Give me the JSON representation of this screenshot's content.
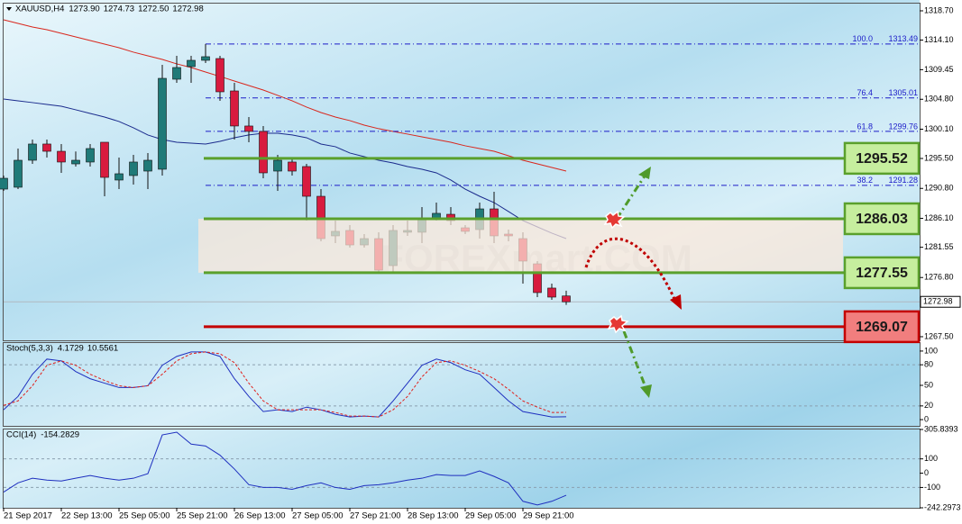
{
  "chart_data": [
    {
      "type": "candlestick",
      "title": "XAUUSD,H4",
      "title_values": [
        "1273.90",
        "1274.73",
        "1272.50",
        "1272.98"
      ],
      "categories": [
        "21 Sep 2017",
        null,
        null,
        null,
        "22 Sep 13:00",
        null,
        null,
        null,
        "25 Sep 05:00",
        null,
        null,
        null,
        "25 Sep 21:00",
        null,
        null,
        null,
        "26 Sep 13:00",
        null,
        null,
        null,
        "27 Sep 05:00",
        null,
        null,
        null,
        "27 Sep 21:00",
        null,
        null,
        null,
        "28 Sep 13:00",
        null,
        null,
        null,
        "29 Sep 05:00",
        null,
        null,
        null,
        "29 Sep 21:00",
        null,
        null,
        null
      ],
      "open": [
        1290.69,
        1290.98,
        1295.22,
        1297.77,
        1296.63,
        1294.65,
        1294.94,
        1298.05,
        1292.11,
        1292.82,
        1293.52,
        1293.81,
        1307.95,
        1309.93,
        1310.92,
        1311.2,
        1306.11,
        1300.6,
        1299.75,
        1293.52,
        1294.94,
        1294.23,
        1289.56,
        1283.34,
        1284.19,
        1281.92,
        1282.91,
        1278.67,
        1283.91,
        1283.91,
        1286.17,
        1286.73,
        1284.61,
        1284.33,
        1287.58,
        1283.62,
        1282.91,
        1278.95,
        1275.14,
        1273.9
      ],
      "high": [
        1292.82,
        1297.06,
        1298.47,
        1298.47,
        1297.77,
        1296.6,
        1297.77,
        1298.05,
        1295.64,
        1296.07,
        1296.35,
        1310.21,
        1311.63,
        1311.63,
        1313.49,
        1311.63,
        1307.38,
        1302.01,
        1300.6,
        1296.07,
        1295.64,
        1294.65,
        1290.69,
        1285.74,
        1285.04,
        1283.62,
        1283.91,
        1285.04,
        1285.74,
        1287.87,
        1288.57,
        1287.87,
        1285.04,
        1288.57,
        1290.27,
        1284.33,
        1283.91,
        1279.38,
        1275.84,
        1274.73
      ],
      "low": [
        1290.41,
        1290.69,
        1294.65,
        1295.64,
        1293.24,
        1294.23,
        1294.23,
        1289.56,
        1290.69,
        1291.4,
        1290.69,
        1292.82,
        1307.38,
        1307.38,
        1310.5,
        1304.56,
        1298.47,
        1298.05,
        1292.39,
        1290.41,
        1292.82,
        1285.74,
        1282.49,
        1282.21,
        1281.5,
        1281.5,
        1277.68,
        1277.68,
        1283.34,
        1282.21,
        1285.74,
        1285.04,
        1283.62,
        1282.91,
        1282.21,
        1282.49,
        1275.84,
        1273.72,
        1273.3,
        1272.5
      ],
      "close": [
        1292.39,
        1295.22,
        1297.77,
        1296.63,
        1294.94,
        1295.22,
        1297.06,
        1292.53,
        1293.1,
        1294.94,
        1295.22,
        1308.09,
        1309.79,
        1310.92,
        1311.49,
        1305.97,
        1300.6,
        1299.75,
        1293.24,
        1295.22,
        1293.52,
        1289.56,
        1282.91,
        1284.05,
        1281.92,
        1282.91,
        1277.96,
        1284.19,
        1284.19,
        1286.17,
        1286.88,
        1285.74,
        1284.05,
        1287.58,
        1283.34,
        1283.34,
        1279.38,
        1274.43,
        1273.72,
        1272.98
      ],
      "up_color": "#1f7a78",
      "down_color": "#d81b3f",
      "overlays": [
        {
          "color": "#d9261c",
          "values": [
            1317.29,
            1316.72,
            1316.15,
            1315.73,
            1315.16,
            1314.6,
            1314.03,
            1313.47,
            1312.9,
            1312.2,
            1311.63,
            1311.06,
            1310.36,
            1309.79,
            1309.08,
            1308.38,
            1307.67,
            1306.96,
            1306.25,
            1305.41,
            1304.56,
            1303.57,
            1302.72,
            1302.01,
            1301.45,
            1300.74,
            1300.18,
            1299.75,
            1299.33,
            1298.9,
            1298.47,
            1298.05,
            1297.49,
            1297.06,
            1296.63,
            1295.93,
            1295.22,
            1294.65,
            1294.09,
            1293.52
          ]
        },
        {
          "color": "#1a2a8c",
          "values": [
            1304.84,
            1304.56,
            1304.28,
            1303.99,
            1303.71,
            1303.15,
            1302.58,
            1302.01,
            1301.31,
            1300.32,
            1299.19,
            1298.47,
            1298.05,
            1297.91,
            1297.77,
            1298.19,
            1298.76,
            1299.19,
            1299.47,
            1299.47,
            1299.19,
            1298.76,
            1297.77,
            1297.35,
            1296.36,
            1295.79,
            1295.22,
            1294.8,
            1294.23,
            1293.81,
            1293.24,
            1292.11,
            1290.69,
            1289.56,
            1288.57,
            1287.16,
            1285.74,
            1284.75,
            1283.77,
            1282.91
          ]
        }
      ],
      "fib_color": "#1c1cc8",
      "fib_levels": [
        {
          "label": "100.0",
          "value": 1313.49
        },
        {
          "label": "76.4",
          "value": 1305.01
        },
        {
          "label": "61.8",
          "value": 1299.76
        },
        {
          "label": "38.2",
          "value": 1291.28
        }
      ],
      "levels": [
        {
          "value": 1295.52,
          "color": "#5aa02c",
          "box": "#c6ee9e"
        },
        {
          "value": 1286.03,
          "color": "#5aa02c",
          "box": "#c6ee9e"
        },
        {
          "value": 1277.55,
          "color": "#5aa02c",
          "box": "#c6ee9e"
        },
        {
          "value": 1269.07,
          "color": "#c40000",
          "box": "#f17e7e"
        }
      ],
      "current_price": 1272.98,
      "watermark": "FOREXmart.COM",
      "ylim": [
        1266.93,
        1319.83
      ],
      "yticks": [
        {
          "value": 1318.7,
          "label": "1318.70"
        },
        {
          "value": 1314.1,
          "label": "1314.10"
        },
        {
          "value": 1309.45,
          "label": "1309.45"
        },
        {
          "value": 1304.8,
          "label": "1304.80"
        },
        {
          "value": 1300.1,
          "label": "1300.10"
        },
        {
          "value": 1295.5,
          "label": "1295.50"
        },
        {
          "value": 1290.8,
          "label": "1290.80"
        },
        {
          "value": 1286.1,
          "label": "1286.10"
        },
        {
          "value": 1281.55,
          "label": "1281.55"
        },
        {
          "value": 1276.8,
          "label": "1276.80"
        },
        {
          "value": 1267.5,
          "label": "1267.50"
        }
      ]
    },
    {
      "type": "line",
      "title": "Stoch(5,3,3)",
      "title_values": [
        "4.1729",
        "10.5561"
      ],
      "series": [
        {
          "color": "#1e2fbf",
          "values": [
            14.3,
            33.8,
            66.2,
            88.3,
            85.7,
            70.1,
            59.7,
            53.2,
            46.8,
            46.8,
            49.4,
            79.2,
            92.2,
            98.7,
            98.7,
            92.2,
            59.7,
            33.8,
            11.7,
            14.3,
            11.7,
            18.2,
            14.3,
            7.8,
            3.9,
            5.2,
            3.9,
            27.3,
            53.2,
            79.2,
            88.3,
            83.1,
            72.7,
            66.2,
            46.8,
            27.3,
            11.7,
            7.8,
            3.9,
            4.1729
          ]
        },
        {
          "color": "#e0201c",
          "dashed": true,
          "values": [
            20.8,
            27.3,
            49.4,
            79.2,
            85.7,
            79.2,
            66.2,
            57.1,
            49.4,
            46.8,
            49.4,
            66.2,
            85.7,
            96.1,
            98.7,
            96.1,
            83.1,
            53.2,
            27.3,
            14.3,
            14.3,
            14.3,
            14.3,
            10.4,
            5.2,
            5.2,
            3.9,
            14.3,
            33.8,
            62.3,
            83.1,
            85.7,
            79.2,
            70.1,
            59.7,
            44.2,
            27.3,
            18.2,
            10.4,
            10.5561
          ]
        }
      ],
      "levels": [
        80,
        20
      ],
      "ylim": [
        -9.1,
        111.7
      ],
      "yticks": [
        100,
        80,
        50,
        20,
        0
      ]
    },
    {
      "type": "line",
      "title": "CCI(14)",
      "title_values": [
        "-154.2829"
      ],
      "series": [
        {
          "color": "#1e2fbf",
          "values": [
            -132.3,
            -67.7,
            -35.5,
            -48.4,
            -54.8,
            -35.5,
            -16.1,
            -35.5,
            -48.4,
            -35.5,
            -3.2,
            267.7,
            287.1,
            203.2,
            190.3,
            125.8,
            29.0,
            -80.6,
            -100,
            -100,
            -112.9,
            -87.1,
            -67.7,
            -100,
            -112.9,
            -87.1,
            -80.6,
            -67.7,
            -48.4,
            -35.5,
            -9.7,
            -16.1,
            -16.1,
            16.1,
            -22.6,
            -67.7,
            -196.8,
            -222.6,
            -196.8,
            -154.2829
          ]
        }
      ],
      "levels": [
        100,
        -100
      ],
      "ylim": [
        -242.2973,
        305.8393
      ],
      "yticks": [
        305.8393,
        100,
        0,
        -100,
        -242.2973
      ]
    }
  ]
}
